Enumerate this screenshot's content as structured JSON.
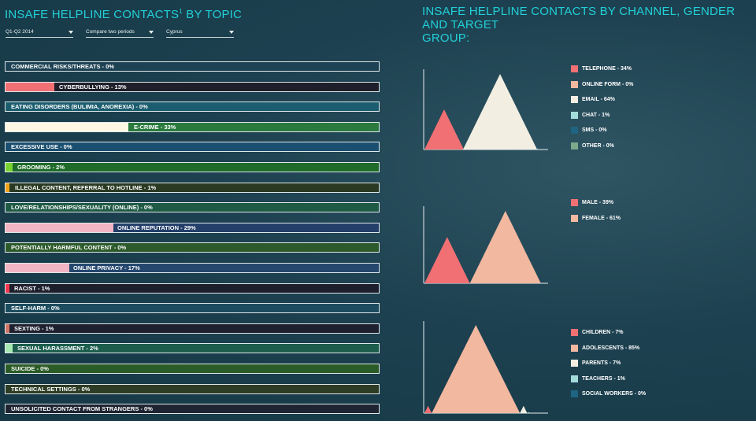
{
  "left_title": "INSAFE HELPLINE CONTACTS",
  "left_title_sup": "1",
  "left_title_suffix": " BY TOPIC",
  "right_title_line1": "INSAFE HELPLINE CONTACTS BY CHANNEL, GENDER AND TARGET",
  "right_title_line2": "GROUP:",
  "filters": {
    "period": "Q1-Q2 2014",
    "compare": "Compare two periods",
    "country": "Cyprus"
  },
  "colors": {
    "red": "#f07074",
    "salmon": "#f2b8a0",
    "cream": "#f2efe2",
    "light_teal": "#a4dcdc",
    "dark_teal": "#1f6482",
    "grey_green": "#7da98c"
  },
  "chart_data": [
    {
      "type": "bar",
      "name": "topics",
      "categories": [
        "Commercial risks/threats",
        "Cyberbullying",
        "Eating disorders (bulimia, anorexia)",
        "E-crime",
        "Excessive use",
        "Grooming",
        "Illegal content, referral to hotline",
        "Love/relationships/sexuality (online)",
        "Online reputation",
        "Potentially harmful content",
        "Online privacy",
        "Racist",
        "Self-harm",
        "Sexting",
        "Sexual harassment",
        "Suicide",
        "Technical settings",
        "Unsolicited contact from strangers"
      ],
      "labels": [
        "COMMERCIAL RISKS/THREATS - 0%",
        "CYBERBULLYING - 13%",
        "EATING DISORDERS (BULIMIA, ANOREXIA) - 0%",
        "E-CRIME - 33%",
        "EXCESSIVE USE - 0%",
        "GROOMING - 2%",
        "ILLEGAL CONTENT, REFERRAL TO HOTLINE - 1%",
        "LOVE/RELATIONSHIPS/SEXUALITY (ONLINE) - 0%",
        "ONLINE REPUTATION - 29%",
        "POTENTIALLY HARMFUL CONTENT - 0%",
        "ONLINE PRIVACY - 17%",
        "RACIST - 1%",
        "SELF-HARM - 0%",
        "SEXTING - 1%",
        "SEXUAL HARASSMENT - 2%",
        "SUICIDE - 0%",
        "TECHNICAL SETTINGS - 0%",
        "UNSOLICITED CONTACT FROM STRANGERS - 0%"
      ],
      "values": [
        0,
        13,
        0,
        33,
        0,
        2,
        1,
        0,
        29,
        0,
        17,
        1,
        0,
        1,
        2,
        0,
        0,
        0
      ],
      "fill_colors": [
        "#ffffff",
        "#f07074",
        "#ffffff",
        "#fdf7e4",
        "#ffffff",
        "#7bd331",
        "#f3a21a",
        "#ffffff",
        "#f2b5c4",
        "#ffffff",
        "#f2b5c4",
        "#f2384f",
        "#ffffff",
        "#d27766",
        "#a7e9b2",
        "#ffffff",
        "#ffffff",
        "#ffffff"
      ],
      "bg_colors": [
        "#1c4253",
        "#1e1f2a",
        "#1b5d6f",
        "#2a7a3e",
        "#1b4f70",
        "#1f6b2a",
        "#2a3a22",
        "#1f5a45",
        "#233f6a",
        "#2c5a2a",
        "#25476e",
        "#1d1f2c",
        "#1c4c5e",
        "#1e2030",
        "#1c5d4c",
        "#2b5b27",
        "#2d3c24",
        "#1e2431"
      ],
      "label_x": [
        7,
        68,
        7,
        163,
        7,
        15,
        12,
        7,
        142,
        7,
        86,
        11,
        7,
        11,
        15,
        7,
        7,
        7
      ]
    },
    {
      "type": "area",
      "name": "channel",
      "series": [
        {
          "name": "TELEPHONE - 34%",
          "value": 34,
          "color": "#f07074"
        },
        {
          "name": "ONLINE FORM - 0%",
          "value": 0,
          "color": "#f2b8a0"
        },
        {
          "name": "EMAIL - 64%",
          "value": 64,
          "color": "#f2efe2"
        },
        {
          "name": "CHAT - 1%",
          "value": 1,
          "color": "#a4dcdc"
        },
        {
          "name": "SMS - 0%",
          "value": 0,
          "color": "#1f6482"
        },
        {
          "name": "OTHER - 0%",
          "value": 0,
          "color": "#7da98c"
        }
      ]
    },
    {
      "type": "area",
      "name": "gender",
      "series": [
        {
          "name": "MALE - 39%",
          "value": 39,
          "color": "#f07074"
        },
        {
          "name": "FEMALE - 61%",
          "value": 61,
          "color": "#f2b8a0"
        }
      ]
    },
    {
      "type": "area",
      "name": "target",
      "series": [
        {
          "name": "CHILDREN - 7%",
          "value": 7,
          "color": "#f07074"
        },
        {
          "name": "ADOLESCENTS - 85%",
          "value": 85,
          "color": "#f2b8a0"
        },
        {
          "name": "PARENTS - 7%",
          "value": 7,
          "color": "#f2efe2"
        },
        {
          "name": "TEACHERS - 1%",
          "value": 1,
          "color": "#a4dcdc"
        },
        {
          "name": "SOCIAL WORKERS - 0%",
          "value": 0,
          "color": "#1f6482"
        }
      ]
    }
  ]
}
